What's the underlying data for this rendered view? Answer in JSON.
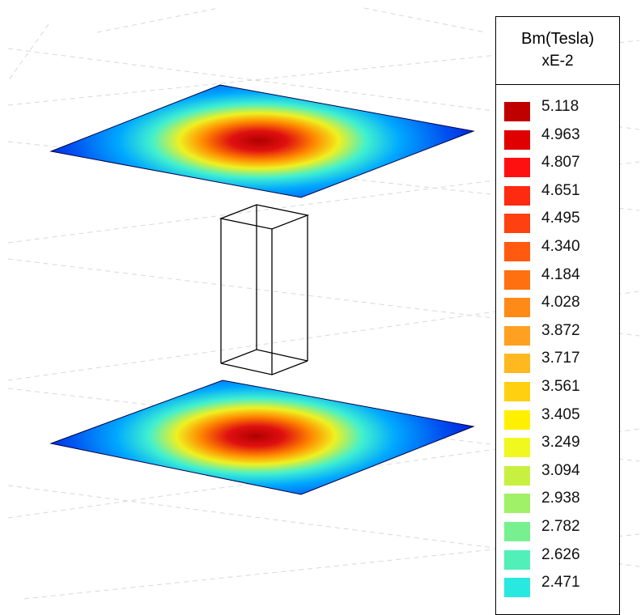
{
  "legend": {
    "title": "Bm(Tesla)",
    "scale": "xE-2",
    "entries": [
      {
        "value": "5.118",
        "color": "#c00000"
      },
      {
        "value": "4.963",
        "color": "#e00000"
      },
      {
        "value": "4.807",
        "color": "#ff1010"
      },
      {
        "value": "4.651",
        "color": "#ff2a10"
      },
      {
        "value": "4.495",
        "color": "#ff4010"
      },
      {
        "value": "4.340",
        "color": "#ff5a10"
      },
      {
        "value": "4.184",
        "color": "#ff7010"
      },
      {
        "value": "4.028",
        "color": "#ff8a18"
      },
      {
        "value": "3.872",
        "color": "#ffa020"
      },
      {
        "value": "3.717",
        "color": "#ffb820"
      },
      {
        "value": "3.561",
        "color": "#ffd010"
      },
      {
        "value": "3.405",
        "color": "#fff000"
      },
      {
        "value": "3.249",
        "color": "#f0f820"
      },
      {
        "value": "3.094",
        "color": "#c8f040"
      },
      {
        "value": "2.938",
        "color": "#a0f068"
      },
      {
        "value": "2.782",
        "color": "#78f090"
      },
      {
        "value": "2.626",
        "color": "#50f0b8"
      },
      {
        "value": "2.471",
        "color": "#28e8e0"
      }
    ]
  },
  "colormap": [
    "#00008b",
    "#0000ff",
    "#0080ff",
    "#00e0ff",
    "#80ff80",
    "#ffff00",
    "#ff8000",
    "#ff0000",
    "#b00000"
  ]
}
